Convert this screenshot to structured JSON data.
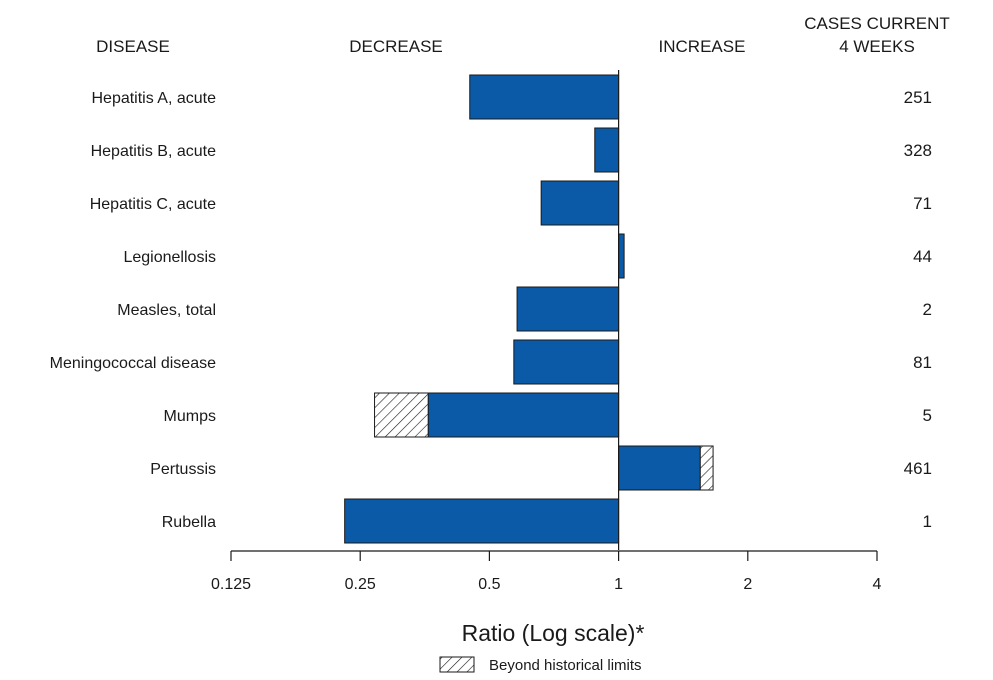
{
  "chart_data": {
    "type": "bar",
    "orientation": "horizontal",
    "headers": {
      "disease": "DISEASE",
      "decrease": "DECREASE",
      "increase": "INCREASE",
      "cases_line1": "CASES CURRENT",
      "cases_line2": "4 WEEKS"
    },
    "categories": [
      "Hepatitis A, acute",
      "Hepatitis B, acute",
      "Hepatitis C, acute",
      "Legionellosis",
      "Measles, total",
      "Meningococcal disease",
      "Mumps",
      "Pertussis",
      "Rubella"
    ],
    "ratios": [
      0.45,
      0.88,
      0.66,
      1.03,
      0.58,
      0.57,
      0.36,
      1.55,
      0.23
    ],
    "historical_limit_ratios": [
      null,
      null,
      null,
      null,
      null,
      null,
      0.27,
      1.66,
      null
    ],
    "cases": [
      "251",
      "328",
      "71",
      "44",
      "2",
      "81",
      "5",
      "461",
      "1"
    ],
    "xlabel": "Ratio (Log scale)*",
    "xscale": "log2",
    "xlim": [
      0.125,
      4
    ],
    "xticks": [
      "0.125",
      "0.25",
      "0.5",
      "1",
      "2",
      "4"
    ],
    "legend": {
      "label": "Beyond historical limits",
      "position": "bottom-center"
    },
    "colors": {
      "bar": "#0a5aa8",
      "outline": "#1a1a1a",
      "hatch": "#1a1a1a"
    }
  }
}
